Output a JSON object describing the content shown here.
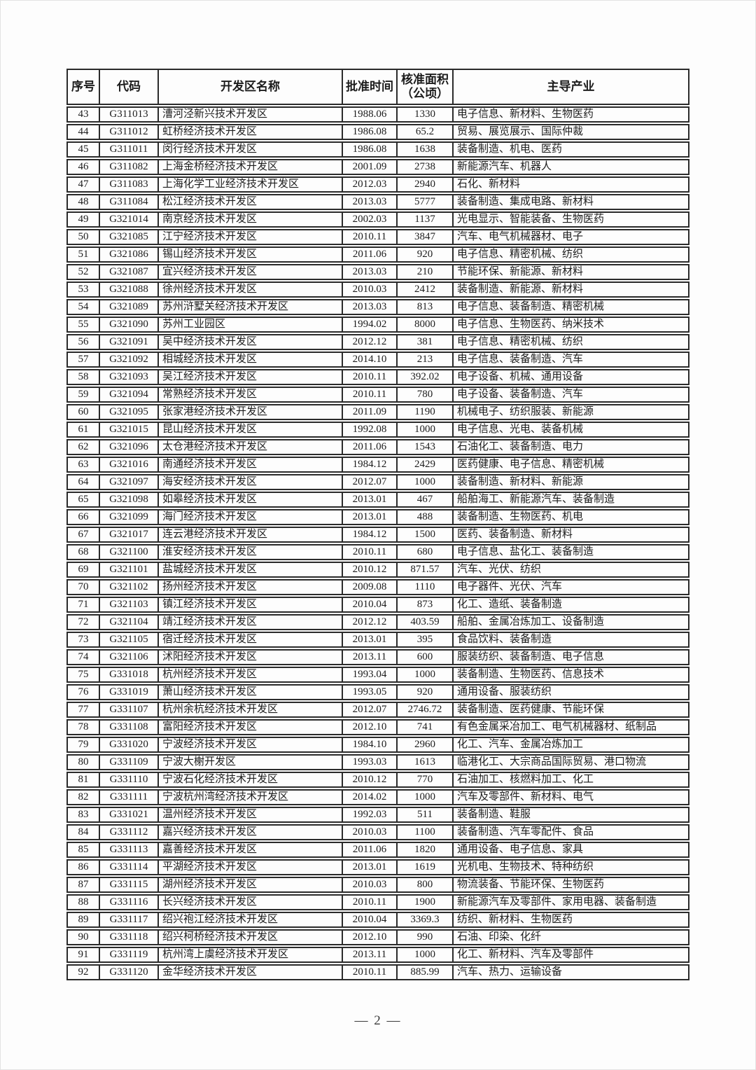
{
  "footer": {
    "page_label": "— 2 —"
  },
  "table": {
    "headers": {
      "index": "序号",
      "code": "代码",
      "name": "开发区名称",
      "date": "批准时间",
      "area_line1": "核准面积",
      "area_line2": "（公顷）",
      "industries": "主导产业"
    },
    "columns": [
      "index",
      "code",
      "name",
      "date",
      "area",
      "industries"
    ],
    "rows": [
      [
        "43",
        "G311013",
        "漕河泾新兴技术开发区",
        "1988.06",
        "1330",
        "电子信息、新材料、生物医药"
      ],
      [
        "44",
        "G311012",
        "虹桥经济技术开发区",
        "1986.08",
        "65.2",
        "贸易、展览展示、国际仲裁"
      ],
      [
        "45",
        "G311011",
        "闵行经济技术开发区",
        "1986.08",
        "1638",
        "装备制造、机电、医药"
      ],
      [
        "46",
        "G311082",
        "上海金桥经济技术开发区",
        "2001.09",
        "2738",
        "新能源汽车、机器人"
      ],
      [
        "47",
        "G311083",
        "上海化学工业经济技术开发区",
        "2012.03",
        "2940",
        "石化、新材料"
      ],
      [
        "48",
        "G311084",
        "松江经济技术开发区",
        "2013.03",
        "5777",
        "装备制造、集成电路、新材料"
      ],
      [
        "49",
        "G321014",
        "南京经济技术开发区",
        "2002.03",
        "1137",
        "光电显示、智能装备、生物医药"
      ],
      [
        "50",
        "G321085",
        "江宁经济技术开发区",
        "2010.11",
        "3847",
        "汽车、电气机械器材、电子"
      ],
      [
        "51",
        "G321086",
        "锡山经济技术开发区",
        "2011.06",
        "920",
        "电子信息、精密机械、纺织"
      ],
      [
        "52",
        "G321087",
        "宜兴经济技术开发区",
        "2013.03",
        "210",
        "节能环保、新能源、新材料"
      ],
      [
        "53",
        "G321088",
        "徐州经济技术开发区",
        "2010.03",
        "2412",
        "装备制造、新能源、新材料"
      ],
      [
        "54",
        "G321089",
        "苏州浒墅关经济技术开发区",
        "2013.03",
        "813",
        "电子信息、装备制造、精密机械"
      ],
      [
        "55",
        "G321090",
        "苏州工业园区",
        "1994.02",
        "8000",
        "电子信息、生物医药、纳米技术"
      ],
      [
        "56",
        "G321091",
        "吴中经济技术开发区",
        "2012.12",
        "381",
        "电子信息、精密机械、纺织"
      ],
      [
        "57",
        "G321092",
        "相城经济技术开发区",
        "2014.10",
        "213",
        "电子信息、装备制造、汽车"
      ],
      [
        "58",
        "G321093",
        "吴江经济技术开发区",
        "2010.11",
        "392.02",
        "电子设备、机械、通用设备"
      ],
      [
        "59",
        "G321094",
        "常熟经济技术开发区",
        "2010.11",
        "780",
        "电子设备、装备制造、汽车"
      ],
      [
        "60",
        "G321095",
        "张家港经济技术开发区",
        "2011.09",
        "1190",
        "机械电子、纺织服装、新能源"
      ],
      [
        "61",
        "G321015",
        "昆山经济技术开发区",
        "1992.08",
        "1000",
        "电子信息、光电、装备机械"
      ],
      [
        "62",
        "G321096",
        "太仓港经济技术开发区",
        "2011.06",
        "1543",
        "石油化工、装备制造、电力"
      ],
      [
        "63",
        "G321016",
        "南通经济技术开发区",
        "1984.12",
        "2429",
        "医药健康、电子信息、精密机械"
      ],
      [
        "64",
        "G321097",
        "海安经济技术开发区",
        "2012.07",
        "1000",
        "装备制造、新材料、新能源"
      ],
      [
        "65",
        "G321098",
        "如皋经济技术开发区",
        "2013.01",
        "467",
        "船舶海工、新能源汽车、装备制造"
      ],
      [
        "66",
        "G321099",
        "海门经济技术开发区",
        "2013.01",
        "488",
        "装备制造、生物医药、机电"
      ],
      [
        "67",
        "G321017",
        "连云港经济技术开发区",
        "1984.12",
        "1500",
        "医药、装备制造、新材料"
      ],
      [
        "68",
        "G321100",
        "淮安经济技术开发区",
        "2010.11",
        "680",
        "电子信息、盐化工、装备制造"
      ],
      [
        "69",
        "G321101",
        "盐城经济技术开发区",
        "2010.12",
        "871.57",
        "汽车、光伏、纺织"
      ],
      [
        "70",
        "G321102",
        "扬州经济技术开发区",
        "2009.08",
        "1110",
        "电子器件、光伏、汽车"
      ],
      [
        "71",
        "G321103",
        "镇江经济技术开发区",
        "2010.04",
        "873",
        "化工、造纸、装备制造"
      ],
      [
        "72",
        "G321104",
        "靖江经济技术开发区",
        "2012.12",
        "403.59",
        "船舶、金属冶炼加工、设备制造"
      ],
      [
        "73",
        "G321105",
        "宿迁经济技术开发区",
        "2013.01",
        "395",
        "食品饮料、装备制造"
      ],
      [
        "74",
        "G321106",
        "沭阳经济技术开发区",
        "2013.11",
        "600",
        "服装纺织、装备制造、电子信息"
      ],
      [
        "75",
        "G331018",
        "杭州经济技术开发区",
        "1993.04",
        "1000",
        "装备制造、生物医药、信息技术"
      ],
      [
        "76",
        "G331019",
        "萧山经济技术开发区",
        "1993.05",
        "920",
        "通用设备、服装纺织"
      ],
      [
        "77",
        "G331107",
        "杭州余杭经济技术开发区",
        "2012.07",
        "2746.72",
        "装备制造、医药健康、节能环保"
      ],
      [
        "78",
        "G331108",
        "富阳经济技术开发区",
        "2012.10",
        "741",
        "有色金属采冶加工、电气机械器材、纸制品"
      ],
      [
        "79",
        "G331020",
        "宁波经济技术开发区",
        "1984.10",
        "2960",
        "化工、汽车、金属冶炼加工"
      ],
      [
        "80",
        "G331109",
        "宁波大榭开发区",
        "1993.03",
        "1613",
        "临港化工、大宗商品国际贸易、港口物流"
      ],
      [
        "81",
        "G331110",
        "宁波石化经济技术开发区",
        "2010.12",
        "770",
        "石油加工、核燃料加工、化工"
      ],
      [
        "82",
        "G331111",
        "宁波杭州湾经济技术开发区",
        "2014.02",
        "1000",
        "汽车及零部件、新材料、电气"
      ],
      [
        "83",
        "G331021",
        "温州经济技术开发区",
        "1992.03",
        "511",
        "装备制造、鞋服"
      ],
      [
        "84",
        "G331112",
        "嘉兴经济技术开发区",
        "2010.03",
        "1100",
        "装备制造、汽车零配件、食品"
      ],
      [
        "85",
        "G331113",
        "嘉善经济技术开发区",
        "2011.06",
        "1820",
        "通用设备、电子信息、家具"
      ],
      [
        "86",
        "G331114",
        "平湖经济技术开发区",
        "2013.01",
        "1619",
        "光机电、生物技术、特种纺织"
      ],
      [
        "87",
        "G331115",
        "湖州经济技术开发区",
        "2010.03",
        "800",
        "物流装备、节能环保、生物医药"
      ],
      [
        "88",
        "G331116",
        "长兴经济技术开发区",
        "2010.11",
        "1900",
        "新能源汽车及零部件、家用电器、装备制造"
      ],
      [
        "89",
        "G331117",
        "绍兴袍江经济技术开发区",
        "2010.04",
        "3369.3",
        "纺织、新材料、生物医药"
      ],
      [
        "90",
        "G331118",
        "绍兴柯桥经济技术开发区",
        "2012.10",
        "990",
        "石油、印染、化纤"
      ],
      [
        "91",
        "G331119",
        "杭州湾上虞经济技术开发区",
        "2013.11",
        "1000",
        "化工、新材料、汽车及零部件"
      ],
      [
        "92",
        "G331120",
        "金华经济技术开发区",
        "2010.11",
        "885.99",
        "汽车、热力、运输设备"
      ]
    ]
  }
}
